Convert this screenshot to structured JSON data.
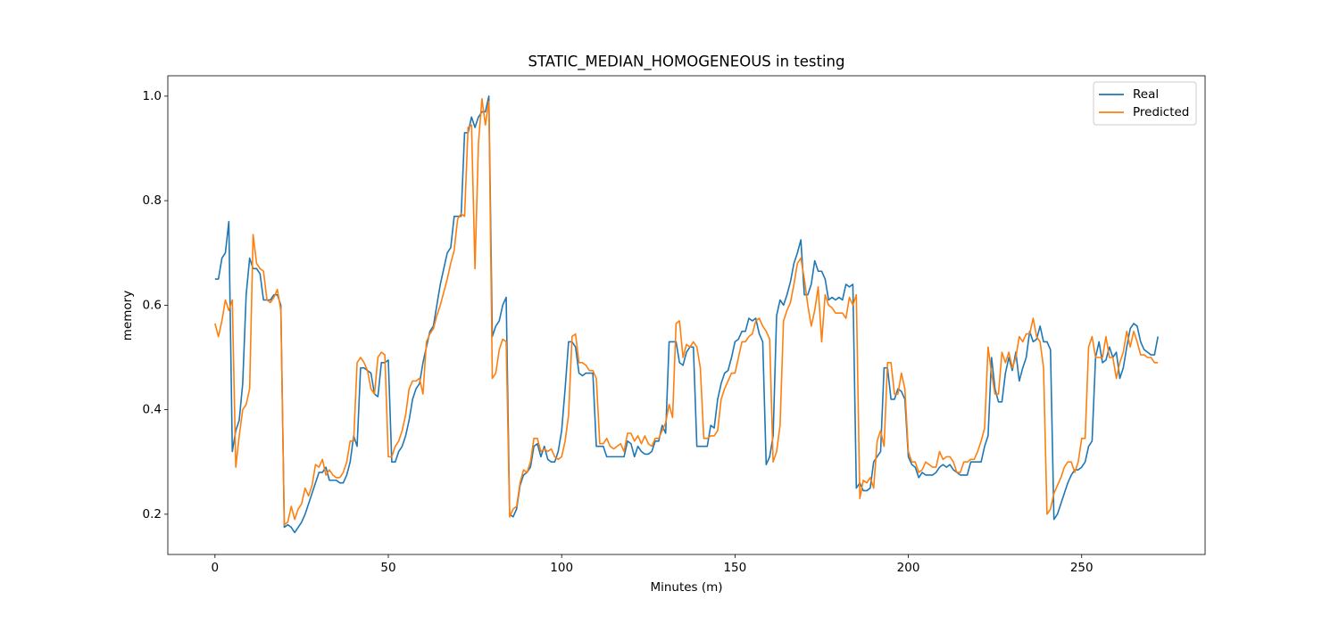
{
  "chart_data": {
    "type": "line",
    "title": "STATIC_MEDIAN_HOMOGENEOUS in testing",
    "xlabel": "Minutes (m)",
    "ylabel": "memory",
    "xlim": [
      -13.6,
      285.6
    ],
    "ylim": [
      0.123,
      1.039
    ],
    "xticks": [
      0,
      50,
      100,
      150,
      200,
      250
    ],
    "yticks": [
      0.2,
      0.4,
      0.6,
      0.8,
      {
        "value": 1.0,
        "label": "1.0"
      }
    ],
    "legend": "upper right",
    "x": [
      0,
      1,
      2,
      3,
      4,
      5,
      6,
      7,
      8,
      9,
      10,
      11,
      12,
      13,
      14,
      15,
      16,
      17,
      18,
      19,
      20,
      21,
      22,
      23,
      24,
      25,
      26,
      27,
      28,
      29,
      30,
      31,
      32,
      33,
      34,
      35,
      36,
      37,
      38,
      39,
      40,
      41,
      42,
      43,
      44,
      45,
      46,
      47,
      48,
      49,
      50,
      51,
      52,
      53,
      54,
      55,
      56,
      57,
      58,
      59,
      60,
      61,
      62,
      63,
      64,
      65,
      66,
      67,
      68,
      69,
      70,
      71,
      72,
      73,
      74,
      75,
      76,
      77,
      78,
      79,
      80,
      81,
      82,
      83,
      84,
      85,
      86,
      87,
      88,
      89,
      90,
      91,
      92,
      93,
      94,
      95,
      96,
      97,
      98,
      99,
      100,
      101,
      102,
      103,
      104,
      105,
      106,
      107,
      108,
      109,
      110,
      111,
      112,
      113,
      114,
      115,
      116,
      117,
      118,
      119,
      120,
      121,
      122,
      123,
      124,
      125,
      126,
      127,
      128,
      129,
      130,
      131,
      132,
      133,
      134,
      135,
      136,
      137,
      138,
      139,
      140,
      141,
      142,
      143,
      144,
      145,
      146,
      147,
      148,
      149,
      150,
      151,
      152,
      153,
      154,
      155,
      156,
      157,
      158,
      159,
      160,
      161,
      162,
      163,
      164,
      165,
      166,
      167,
      168,
      169,
      170,
      171,
      172,
      173,
      174,
      175,
      176,
      177,
      178,
      179,
      180,
      181,
      182,
      183,
      184,
      185,
      186,
      187,
      188,
      189,
      190,
      191,
      192,
      193,
      194,
      195,
      196,
      197,
      198,
      199,
      200,
      201,
      202,
      203,
      204,
      205,
      206,
      207,
      208,
      209,
      210,
      211,
      212,
      213,
      214,
      215,
      216,
      217,
      218,
      219,
      220,
      221,
      222,
      223,
      224,
      225,
      226,
      227,
      228,
      229,
      230,
      231,
      232,
      233,
      234,
      235,
      236,
      237,
      238,
      239,
      240,
      241,
      242,
      243,
      244,
      245,
      246,
      247,
      248,
      249,
      250,
      251,
      252,
      253,
      254,
      255,
      256,
      257,
      258,
      259,
      260,
      261,
      262,
      263,
      264,
      265,
      266,
      267,
      268,
      269,
      270,
      271,
      272
    ],
    "series": [
      {
        "name": "Real",
        "color": "#1f77b4",
        "values": [
          0.65,
          0.65,
          0.69,
          0.7,
          0.76,
          0.32,
          0.36,
          0.38,
          0.45,
          0.62,
          0.69,
          0.67,
          0.67,
          0.66,
          0.61,
          0.61,
          0.61,
          0.62,
          0.62,
          0.6,
          0.175,
          0.18,
          0.175,
          0.165,
          0.175,
          0.185,
          0.2,
          0.22,
          0.24,
          0.26,
          0.28,
          0.28,
          0.29,
          0.265,
          0.265,
          0.265,
          0.26,
          0.26,
          0.275,
          0.3,
          0.35,
          0.33,
          0.48,
          0.48,
          0.475,
          0.47,
          0.43,
          0.425,
          0.49,
          0.49,
          0.495,
          0.3,
          0.3,
          0.32,
          0.33,
          0.35,
          0.38,
          0.42,
          0.44,
          0.45,
          0.49,
          0.52,
          0.55,
          0.56,
          0.6,
          0.64,
          0.67,
          0.7,
          0.71,
          0.77,
          0.77,
          0.77,
          0.93,
          0.93,
          0.96,
          0.94,
          0.96,
          0.97,
          0.97,
          1.0,
          0.54,
          0.56,
          0.57,
          0.6,
          0.615,
          0.2,
          0.195,
          0.21,
          0.255,
          0.275,
          0.28,
          0.29,
          0.33,
          0.335,
          0.31,
          0.33,
          0.305,
          0.3,
          0.3,
          0.32,
          0.36,
          0.44,
          0.53,
          0.53,
          0.52,
          0.47,
          0.465,
          0.47,
          0.47,
          0.47,
          0.33,
          0.33,
          0.33,
          0.31,
          0.31,
          0.31,
          0.31,
          0.31,
          0.31,
          0.34,
          0.335,
          0.31,
          0.33,
          0.32,
          0.315,
          0.315,
          0.32,
          0.34,
          0.34,
          0.37,
          0.355,
          0.53,
          0.53,
          0.53,
          0.49,
          0.485,
          0.51,
          0.52,
          0.52,
          0.33,
          0.33,
          0.33,
          0.33,
          0.37,
          0.365,
          0.42,
          0.45,
          0.47,
          0.475,
          0.5,
          0.53,
          0.535,
          0.55,
          0.55,
          0.575,
          0.57,
          0.575,
          0.545,
          0.53,
          0.295,
          0.31,
          0.35,
          0.58,
          0.61,
          0.6,
          0.62,
          0.645,
          0.68,
          0.7,
          0.725,
          0.62,
          0.62,
          0.64,
          0.685,
          0.665,
          0.665,
          0.65,
          0.61,
          0.615,
          0.61,
          0.615,
          0.61,
          0.64,
          0.635,
          0.64,
          0.25,
          0.26,
          0.245,
          0.245,
          0.25,
          0.3,
          0.31,
          0.32,
          0.48,
          0.48,
          0.42,
          0.42,
          0.44,
          0.435,
          0.42,
          0.31,
          0.295,
          0.29,
          0.27,
          0.28,
          0.275,
          0.275,
          0.275,
          0.28,
          0.29,
          0.295,
          0.29,
          0.295,
          0.285,
          0.28,
          0.275,
          0.275,
          0.275,
          0.3,
          0.3,
          0.3,
          0.3,
          0.33,
          0.35,
          0.5,
          0.44,
          0.415,
          0.415,
          0.47,
          0.5,
          0.475,
          0.51,
          0.455,
          0.48,
          0.5,
          0.55,
          0.53,
          0.535,
          0.56,
          0.53,
          0.53,
          0.515,
          0.19,
          0.2,
          0.22,
          0.24,
          0.26,
          0.275,
          0.285,
          0.285,
          0.29,
          0.3,
          0.33,
          0.34,
          0.5,
          0.53,
          0.49,
          0.495,
          0.52,
          0.5,
          0.51,
          0.46,
          0.48,
          0.52,
          0.555,
          0.565,
          0.56,
          0.53,
          0.515,
          0.51,
          0.505,
          0.505,
          0.54
        ]
      },
      {
        "name": "Predicted",
        "color": "#ff7f0e",
        "values": [
          0.565,
          0.54,
          0.57,
          0.61,
          0.59,
          0.61,
          0.29,
          0.35,
          0.4,
          0.41,
          0.44,
          0.735,
          0.68,
          0.67,
          0.665,
          0.61,
          0.605,
          0.615,
          0.63,
          0.59,
          0.18,
          0.185,
          0.215,
          0.19,
          0.21,
          0.22,
          0.25,
          0.235,
          0.255,
          0.295,
          0.29,
          0.305,
          0.275,
          0.285,
          0.275,
          0.27,
          0.27,
          0.28,
          0.3,
          0.34,
          0.34,
          0.49,
          0.5,
          0.49,
          0.475,
          0.44,
          0.43,
          0.5,
          0.51,
          0.505,
          0.31,
          0.31,
          0.33,
          0.34,
          0.36,
          0.39,
          0.44,
          0.455,
          0.455,
          0.46,
          0.43,
          0.53,
          0.545,
          0.555,
          0.58,
          0.6,
          0.625,
          0.65,
          0.68,
          0.705,
          0.765,
          0.775,
          0.77,
          0.94,
          0.945,
          0.67,
          0.91,
          0.995,
          0.945,
          0.99,
          0.46,
          0.47,
          0.515,
          0.535,
          0.53,
          0.195,
          0.21,
          0.215,
          0.26,
          0.285,
          0.28,
          0.3,
          0.345,
          0.345,
          0.32,
          0.325,
          0.32,
          0.325,
          0.31,
          0.305,
          0.31,
          0.34,
          0.39,
          0.54,
          0.545,
          0.49,
          0.49,
          0.485,
          0.475,
          0.475,
          0.46,
          0.335,
          0.335,
          0.345,
          0.33,
          0.325,
          0.33,
          0.335,
          0.32,
          0.355,
          0.355,
          0.34,
          0.35,
          0.335,
          0.35,
          0.335,
          0.33,
          0.345,
          0.345,
          0.36,
          0.375,
          0.41,
          0.385,
          0.565,
          0.57,
          0.5,
          0.525,
          0.52,
          0.53,
          0.52,
          0.48,
          0.345,
          0.345,
          0.35,
          0.35,
          0.36,
          0.42,
          0.44,
          0.455,
          0.47,
          0.47,
          0.5,
          0.53,
          0.53,
          0.54,
          0.545,
          0.57,
          0.575,
          0.56,
          0.55,
          0.535,
          0.3,
          0.32,
          0.37,
          0.57,
          0.59,
          0.605,
          0.64,
          0.68,
          0.69,
          0.65,
          0.6,
          0.56,
          0.59,
          0.635,
          0.53,
          0.62,
          0.6,
          0.595,
          0.585,
          0.585,
          0.585,
          0.575,
          0.615,
          0.6,
          0.62,
          0.23,
          0.265,
          0.26,
          0.27,
          0.25,
          0.34,
          0.36,
          0.33,
          0.49,
          0.49,
          0.43,
          0.43,
          0.47,
          0.44,
          0.32,
          0.3,
          0.3,
          0.28,
          0.285,
          0.3,
          0.295,
          0.29,
          0.29,
          0.32,
          0.305,
          0.31,
          0.31,
          0.3,
          0.28,
          0.28,
          0.3,
          0.3,
          0.305,
          0.305,
          0.32,
          0.34,
          0.365,
          0.52,
          0.47,
          0.43,
          0.43,
          0.51,
          0.49,
          0.51,
          0.48,
          0.5,
          0.54,
          0.53,
          0.545,
          0.545,
          0.575,
          0.54,
          0.53,
          0.48,
          0.2,
          0.21,
          0.24,
          0.255,
          0.27,
          0.29,
          0.3,
          0.3,
          0.28,
          0.3,
          0.345,
          0.345,
          0.52,
          0.54,
          0.5,
          0.5,
          0.5,
          0.54,
          0.5,
          0.5,
          0.46,
          0.49,
          0.51,
          0.55,
          0.52,
          0.55,
          0.53,
          0.505,
          0.505,
          0.5,
          0.5,
          0.49,
          0.49
        ]
      }
    ]
  }
}
